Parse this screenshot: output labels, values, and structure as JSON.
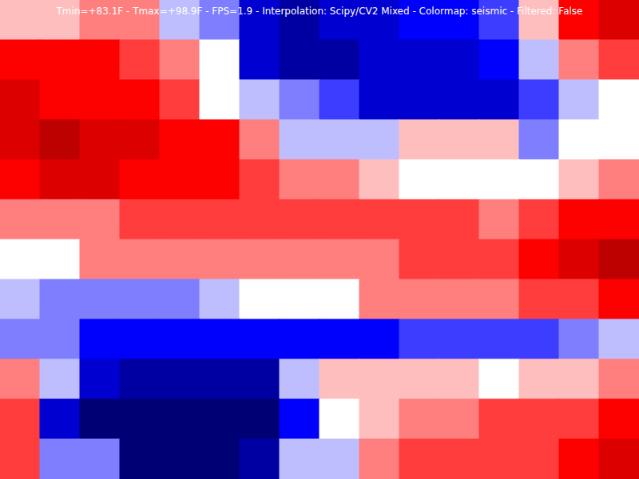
{
  "chart_data": {
    "type": "heatmap",
    "title": "Tmin=+83.1F - Tmax=+98.9F - FPS=1.9 - Interpolation: Scipy/CV2 Mixed - Colormap: seismic - Filtered: False",
    "xlim": [
      0,
      16
    ],
    "ylim": [
      0,
      12
    ],
    "tick_labels": false,
    "color_range": [
      83.1,
      98.9
    ],
    "cells": [
      [
        92,
        92,
        93,
        93,
        90,
        89,
        86,
        85,
        86,
        86,
        87,
        87,
        88,
        92,
        95,
        96
      ],
      [
        95,
        95,
        95,
        94,
        93,
        91,
        86,
        85,
        85,
        86,
        86,
        86,
        87,
        90,
        93,
        94
      ],
      [
        96,
        95,
        95,
        95,
        94,
        91,
        90,
        89,
        88,
        86,
        86,
        86,
        86,
        88,
        90,
        91
      ],
      [
        96,
        97,
        96,
        96,
        95,
        95,
        93,
        90,
        90,
        90,
        92,
        92,
        92,
        89,
        91,
        91
      ],
      [
        95,
        96,
        96,
        95,
        95,
        95,
        94,
        93,
        93,
        92,
        91,
        91,
        91,
        91,
        92,
        93
      ],
      [
        93,
        93,
        93,
        94,
        94,
        94,
        94,
        94,
        94,
        94,
        94,
        94,
        93,
        94,
        95,
        95
      ],
      [
        91,
        91,
        93,
        93,
        93,
        93,
        93,
        93,
        93,
        93,
        94,
        94,
        94,
        95,
        96,
        97
      ],
      [
        90,
        89,
        89,
        89,
        89,
        90,
        91,
        91,
        91,
        93,
        93,
        93,
        93,
        94,
        94,
        95
      ],
      [
        89,
        89,
        87,
        87,
        87,
        87,
        87,
        87,
        87,
        87,
        88,
        88,
        88,
        88,
        89,
        90
      ],
      [
        93,
        90,
        86,
        85,
        85,
        85,
        85,
        90,
        92,
        92,
        92,
        92,
        91,
        92,
        92,
        93
      ],
      [
        94,
        86,
        84,
        84,
        84,
        84,
        84,
        87,
        91,
        92,
        93,
        93,
        94,
        94,
        94,
        95
      ],
      [
        94,
        89,
        89,
        84,
        84,
        84,
        85,
        90,
        90,
        93,
        94,
        94,
        94,
        94,
        95,
        96
      ]
    ]
  }
}
